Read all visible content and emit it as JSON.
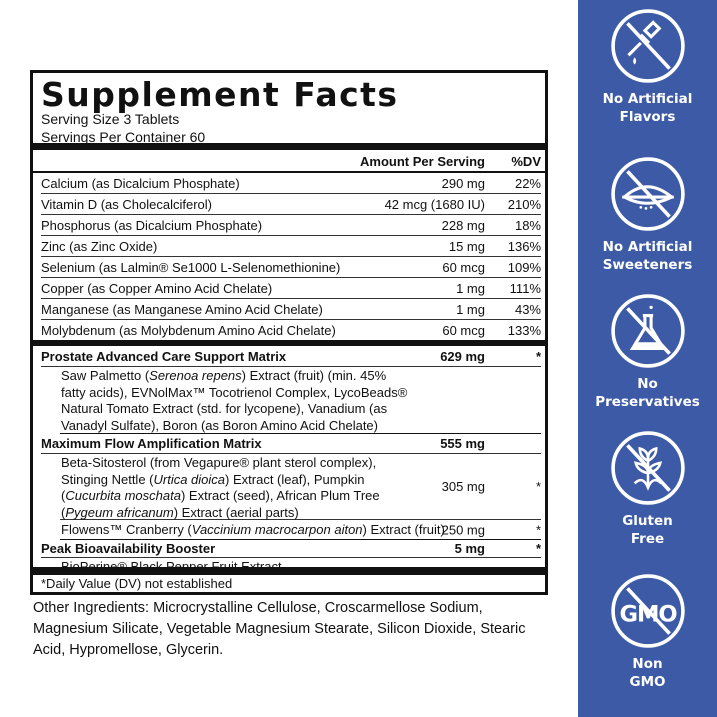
{
  "facts": {
    "title": "Supplement Facts",
    "serving_size": "Serving Size 3 Tablets",
    "servings_per_container": "Servings Per Container 60",
    "header": {
      "amount": "Amount Per Serving",
      "dv": "%DV"
    },
    "nutrients": [
      {
        "name": "Calcium (as Dicalcium Phosphate)",
        "amount": "290 mg",
        "dv": "22%"
      },
      {
        "name": "Vitamin D (as Cholecalciferol)",
        "amount": "42 mcg (1680 IU)",
        "dv": "210%"
      },
      {
        "name": "Phosphorus (as Dicalcium Phosphate)",
        "amount": "228 mg",
        "dv": "18%"
      },
      {
        "name": "Zinc (as Zinc Oxide)",
        "amount": "15 mg",
        "dv": "136%"
      },
      {
        "name": "Selenium (as Lalmin® Se1000 L-Selenomethionine)",
        "amount": "60 mcg",
        "dv": "109%"
      },
      {
        "name": "Copper (as Copper Amino Acid Chelate)",
        "amount": "1 mg",
        "dv": "111%"
      },
      {
        "name": "Manganese (as Manganese Amino Acid Chelate)",
        "amount": "1 mg",
        "dv": "43%"
      },
      {
        "name": "Molybdenum (as Molybdenum Amino Acid Chelate)",
        "amount": "60 mcg",
        "dv": "133%"
      }
    ],
    "blends": {
      "prostate": {
        "name": "Prostate Advanced Care Support Matrix",
        "amount": "629 mg",
        "dv": "*",
        "ingredients": "Saw Palmetto (Serenoa repens) Extract (fruit) (min. 45% fatty acids), EVNolMax™ Tocotrienol Complex, LycoBeads® Natural Tomato Extract (std. for lycopene), Vanadium (as Vanadyl Sulfate), Boron (as Boron Amino Acid Chelate)"
      },
      "flow": {
        "name": "Maximum Flow Amplification Matrix",
        "amount": "555 mg",
        "sub1": {
          "text": "Beta-Sitosterol (from Vegapure® plant sterol complex), Stinging Nettle (Urtica dioica) Extract (leaf), Pumpkin (Cucurbita moschata) Extract (seed), African Plum Tree (Pygeum africanum) Extract (aerial parts)",
          "amount": "305 mg",
          "dv": "*"
        },
        "sub2": {
          "text": "Flowens™ Cranberry (Vaccinium macrocarpon aiton) Extract (fruit)",
          "amount": "250 mg",
          "dv": "*"
        }
      },
      "peak": {
        "name": "Peak Bioavailability Booster",
        "amount": "5 mg",
        "dv": "*",
        "ingredients": "BioPerine® Black Pepper Fruit Extract"
      }
    },
    "footnote": "*Daily Value (DV) not established"
  },
  "other_ingredients": "Other Ingredients: Microcrystalline Cellulose, Croscarmellose Sodium, Magnesium Silicate, Vegetable Magnesium Stearate, Silicon Dioxide, Stearic Acid, Hypromellose, Glycerin.",
  "badges": [
    {
      "icon": "dropper-crossed-icon",
      "l1": "No Artificial",
      "l2": "Flavors"
    },
    {
      "icon": "sugar-leaf-crossed-icon",
      "l1": "No Artificial",
      "l2": "Sweeteners"
    },
    {
      "icon": "flask-crossed-icon",
      "l1": "No",
      "l2": "Preservatives"
    },
    {
      "icon": "wheat-crossed-icon",
      "l1": "Gluten",
      "l2": "Free"
    },
    {
      "icon": "gmo-crossed-icon",
      "l1": "Non",
      "l2": "GMO",
      "icon_text": "GMO"
    }
  ],
  "colors": {
    "sidebar": "#3d5aa6",
    "text": "#111111"
  }
}
